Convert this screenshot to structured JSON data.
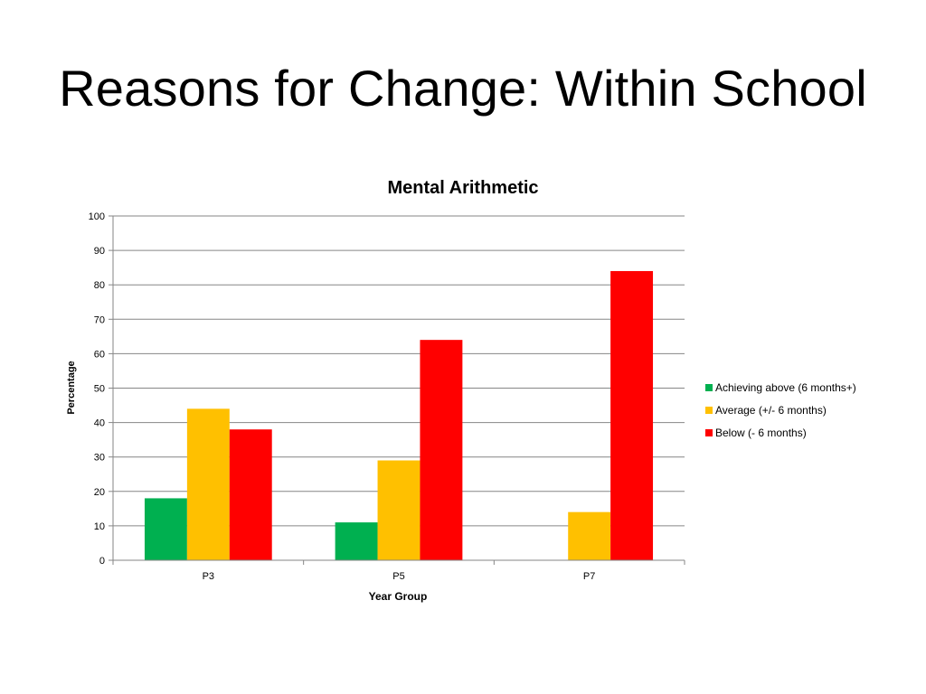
{
  "slide": {
    "title": "Reasons for Change: Within School"
  },
  "chart_data": {
    "type": "bar",
    "title": "Mental Arithmetic",
    "xlabel": "Year Group",
    "ylabel": "Percentage",
    "categories": [
      "P3",
      "P5",
      "P7"
    ],
    "ylim": [
      0,
      100
    ],
    "yticks": [
      0,
      10,
      20,
      30,
      40,
      50,
      60,
      70,
      80,
      90,
      100
    ],
    "grid": true,
    "legend_position": "right",
    "series": [
      {
        "name": "Achieving above (6 months+)",
        "color": "#00b050",
        "values": [
          18,
          11,
          0
        ]
      },
      {
        "name": "Average (+/- 6 months)",
        "color": "#ffc000",
        "values": [
          44,
          29,
          14
        ]
      },
      {
        "name": "Below (- 6 months)",
        "color": "#ff0000",
        "values": [
          38,
          64,
          84
        ]
      }
    ]
  }
}
